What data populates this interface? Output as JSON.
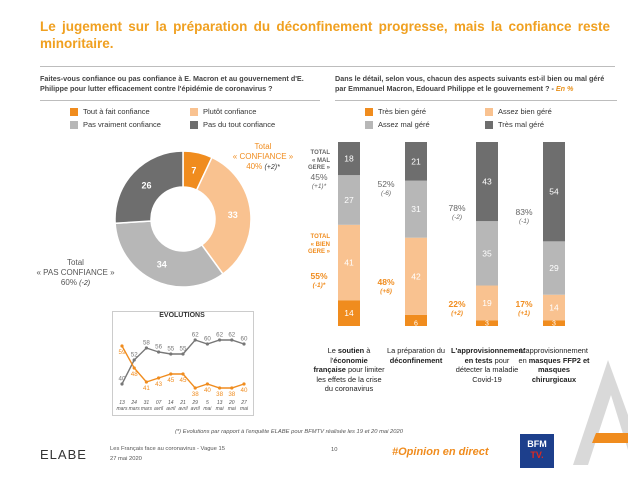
{
  "title": "Le jugement sur la préparation du déconfinement progresse, mais la confiance reste minoritaire.",
  "left_question": "Faites-vous confiance ou pas confiance à E. Macron et au gouvernement d'E. Philippe pour lutter efficacement contre l'épidémie de coronavirus ?",
  "right_question": "Dans le détail, selon vous, chacun des aspects suivants est-il bien ou mal géré par Emmanuel Macron, Edouard Philippe et le gouvernement ? -",
  "right_question_unit": "En %",
  "colors": {
    "c1": "#f08c1e",
    "c2": "#f9c290",
    "c3": "#b7b7b7",
    "c4": "#6e6e6e",
    "accent": "#f0a020"
  },
  "donut_legend": [
    "Tout à fait confiance",
    "Plutôt confiance",
    "Pas vraiment confiance",
    "Pas du tout confiance"
  ],
  "donut_total_confiance": {
    "line1": "Total",
    "line2": "« CONFIANCE »",
    "value": "40%",
    "delta": "(+2)*"
  },
  "donut_total_pas": {
    "line1": "Total",
    "line2": "« PAS CONFIANCE »",
    "value": "60%",
    "delta": "(-2)"
  },
  "bar_legend": [
    "Très bien géré",
    "Assez bien géré",
    "Assez mal géré",
    "Très mal géré"
  ],
  "total_mal_label": [
    "TOTAL",
    "« MAL",
    "GERE »"
  ],
  "total_bien_label": [
    "TOTAL",
    "« BIEN",
    "GERE »"
  ],
  "bar_totals": [
    {
      "mal": "45%",
      "mal_delta": "(+1)*",
      "bien": "55%",
      "bien_delta": "(-1)*"
    },
    {
      "mal": "52%",
      "mal_delta": "(-6)",
      "bien": "48%",
      "bien_delta": "(+6)"
    },
    {
      "mal": "78%",
      "mal_delta": "(-2)",
      "bien": "22%",
      "bien_delta": "(+2)"
    },
    {
      "mal": "83%",
      "mal_delta": "(-1)",
      "bien": "17%",
      "bien_delta": "(+1)"
    }
  ],
  "evolution_title": "EVOLUTIONS",
  "ev_dates": [
    [
      "13",
      "mars"
    ],
    [
      "24",
      "mars"
    ],
    [
      "31",
      "mars"
    ],
    [
      "07",
      "avril"
    ],
    [
      "14",
      "avril"
    ],
    [
      "21",
      "avril"
    ],
    [
      "29",
      "avril"
    ],
    [
      "5",
      "mai"
    ],
    [
      "13",
      "mai"
    ],
    [
      "20",
      "mai"
    ],
    [
      "27",
      "mai"
    ]
  ],
  "categories": [
    [
      [
        "Le ",
        false
      ],
      [
        "soutien",
        true
      ],
      [
        " à l'",
        false
      ],
      [
        "économie française",
        true
      ],
      [
        " pour limiter les effets de la crise du coronavirus",
        false
      ]
    ],
    [
      [
        "La préparation du ",
        false
      ],
      [
        "déconfinement",
        true
      ]
    ],
    [
      [
        "L'approvisionnement en tests",
        true
      ],
      [
        " pour détecter la maladie Covid-19",
        false
      ]
    ],
    [
      [
        "L'approvisionnement en ",
        false
      ],
      [
        "masques FFP2 et masques chirurgicaux",
        true
      ]
    ]
  ],
  "footnote": "(*) Evolutions par rapport à l'enquête ELABE pour BFMTV réalisée les 19 et 20 mai 2020",
  "footer": {
    "brand": "ELABE",
    "line1": "Les Français face au coronavirus - Vague 15",
    "line2": "27 mai 2020",
    "page": "10",
    "hashtag": "#Opinion en direct",
    "bfm": "BFM",
    "tv": "TV."
  },
  "chart_data": [
    {
      "type": "pie",
      "title": "",
      "categories": [
        "Tout à fait confiance",
        "Plutôt confiance",
        "Pas vraiment confiance",
        "Pas du tout confiance"
      ],
      "values": [
        7,
        33,
        34,
        26
      ]
    },
    {
      "type": "bar",
      "stacked": true,
      "categories": [
        "Le soutien à l'économie française pour limiter les effets de la crise du coronavirus",
        "La préparation du déconfinement",
        "L'approvisionnement en tests pour détecter la maladie Covid-19",
        "L'approvisionnement en masques FFP2 et masques chirurgicaux"
      ],
      "series": [
        {
          "name": "Très bien géré",
          "values": [
            14,
            6,
            3,
            3
          ]
        },
        {
          "name": "Assez bien géré",
          "values": [
            41,
            42,
            19,
            14
          ]
        },
        {
          "name": "Assez mal géré",
          "values": [
            27,
            31,
            35,
            29
          ]
        },
        {
          "name": "Très mal géré",
          "values": [
            18,
            21,
            43,
            54
          ]
        }
      ]
    },
    {
      "type": "line",
      "title": "EVOLUTIONS",
      "x": [
        "13 mars",
        "24 mars",
        "31 mars",
        "07 avril",
        "14 avril",
        "21 avril",
        "29 avril",
        "5 mai",
        "13 mai",
        "20 mai",
        "27 mai"
      ],
      "series": [
        {
          "name": "Total « PAS CONFIANCE »",
          "values": [
            40,
            52,
            58,
            56,
            55,
            55,
            62,
            60,
            62,
            62,
            60
          ]
        },
        {
          "name": "Total « CONFIANCE »",
          "values": [
            59,
            48,
            41,
            43,
            45,
            45,
            38,
            40,
            38,
            38,
            40
          ]
        }
      ]
    }
  ]
}
